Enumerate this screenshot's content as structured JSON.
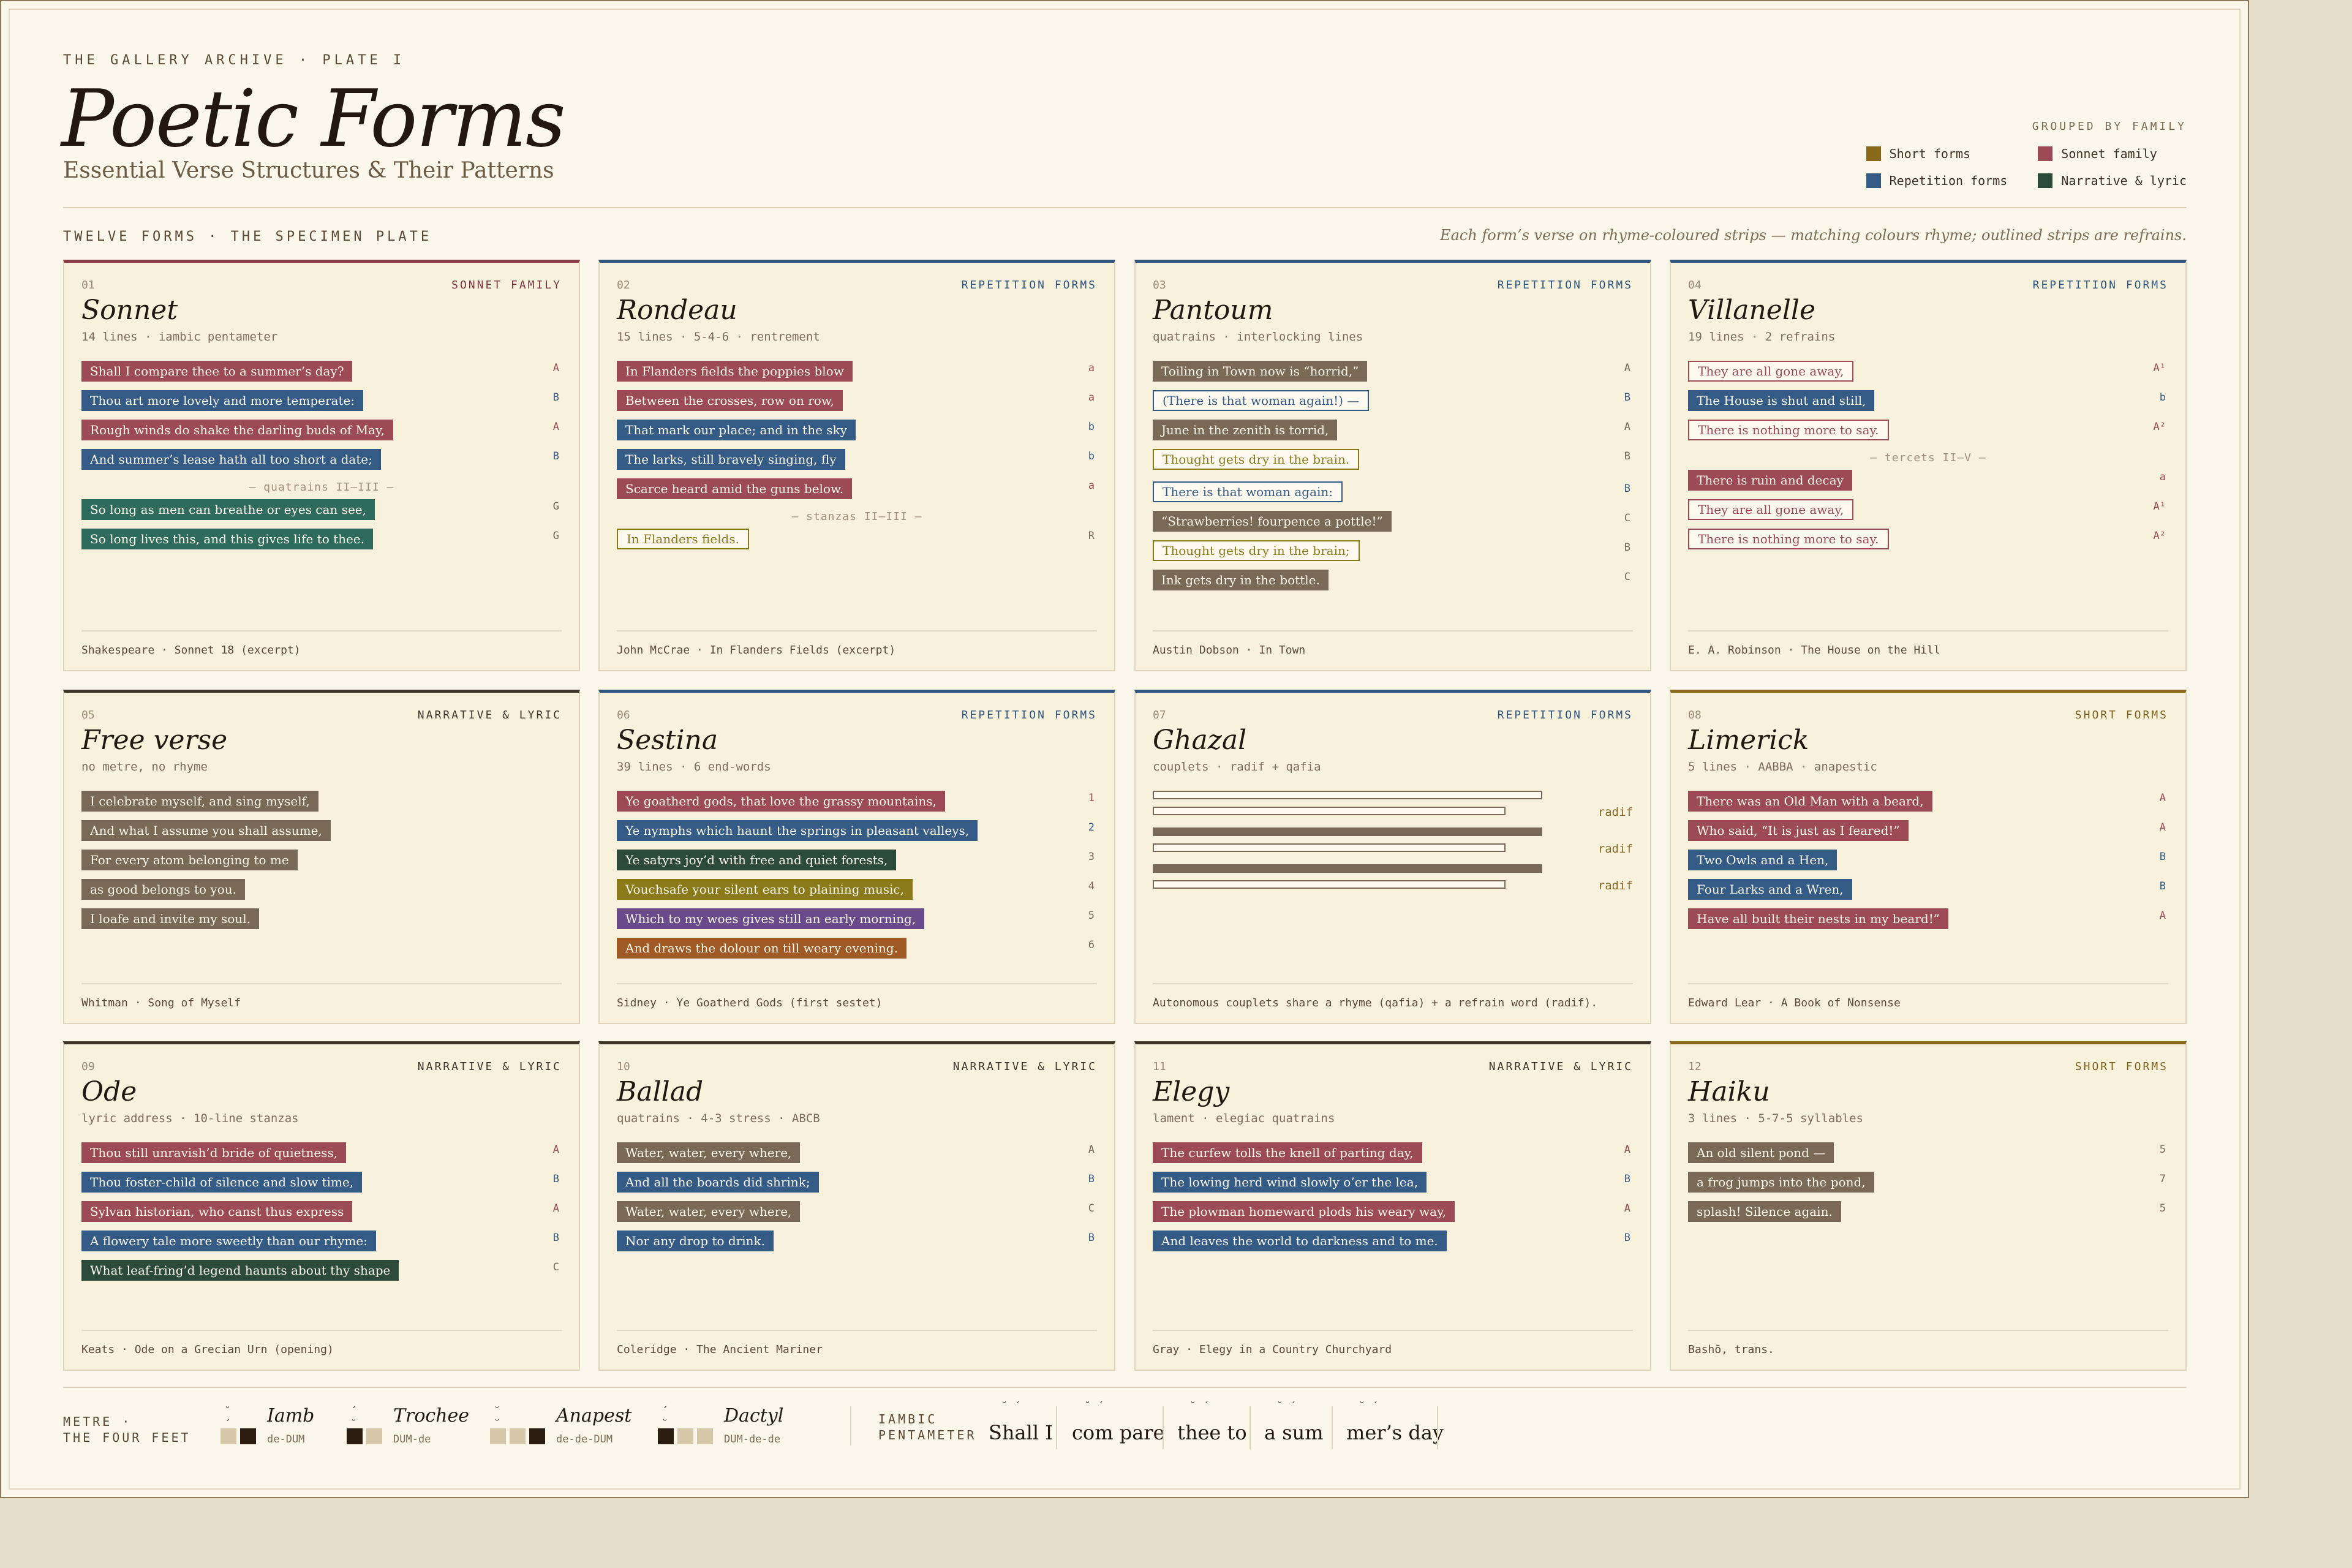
{
  "header": {
    "eyebrow": "THE GALLERY ARCHIVE · PLATE I",
    "title": "Poetic Forms",
    "subtitle": "Essential Verse Structures & Their Patterns"
  },
  "legend": {
    "heading": "GROUPED BY FAMILY",
    "items": [
      {
        "label": "Short forms",
        "color": "#8a6a1a"
      },
      {
        "label": "Sonnet family",
        "color": "#9c4a55"
      },
      {
        "label": "Repetition forms",
        "color": "#335b85"
      },
      {
        "label": "Narrative & lyric",
        "color": "#2c4a3a"
      }
    ]
  },
  "section": {
    "label": "TWELVE FORMS · THE SPECIMEN PLATE",
    "note": "Each form’s verse on rhyme-coloured strips — matching colours rhyme; outlined strips are refrains."
  },
  "cards": [
    {
      "num": "01",
      "family": "SONNET FAMILY",
      "title": "Sonnet",
      "meta": "14 lines · iambic pentameter",
      "lines": [
        {
          "text": "Shall I compare thee to a summer’s day?",
          "rhyme": "A"
        },
        {
          "text": "Thou art more lovely and more temperate:",
          "rhyme": "B"
        },
        {
          "text": "Rough winds do shake the darling buds of May,",
          "rhyme": "A"
        },
        {
          "text": "And summer’s lease hath all too short a date;",
          "rhyme": "B"
        },
        {
          "text": "So long as men can breathe or eyes can see,",
          "rhyme": "G"
        },
        {
          "text": "So long lives this, and this gives life to thee.",
          "rhyme": "G"
        }
      ],
      "divider": "— quatrains II–III —",
      "source": "Shakespeare · Sonnet 18 (excerpt)"
    },
    {
      "num": "02",
      "family": "REPETITION FORMS",
      "title": "Rondeau",
      "meta": "15 lines · 5-4-6 · rentrement",
      "lines": [
        {
          "text": "In Flanders fields the poppies blow",
          "rhyme": "a"
        },
        {
          "text": "Between the crosses, row on row,",
          "rhyme": "a"
        },
        {
          "text": "That mark our place; and in the sky",
          "rhyme": "b"
        },
        {
          "text": "The larks, still bravely singing, fly",
          "rhyme": "b"
        },
        {
          "text": "Scarce heard amid the guns below.",
          "rhyme": "a"
        },
        {
          "text": "In Flanders fields.",
          "rhyme": "R"
        }
      ],
      "divider": "— stanzas II–III —",
      "source": "John McCrae · In Flanders Fields (excerpt)"
    },
    {
      "num": "03",
      "family": "REPETITION FORMS",
      "title": "Pantoum",
      "meta": "quatrains · interlocking lines",
      "lines": [
        {
          "text": "Toiling in Town now is “horrid,”",
          "rhyme": "A"
        },
        {
          "text": "(There is that woman again!) —",
          "rhyme": "B"
        },
        {
          "text": "June in the zenith is torrid,",
          "rhyme": "A"
        },
        {
          "text": "Thought gets dry in the brain.",
          "rhyme": "B"
        },
        {
          "text": "There is that woman again:",
          "rhyme": "B"
        },
        {
          "text": "“Strawberries! fourpence a pottle!”",
          "rhyme": "C"
        },
        {
          "text": "Thought gets dry in the brain;",
          "rhyme": "B"
        },
        {
          "text": "Ink gets dry in the bottle.",
          "rhyme": "C"
        }
      ],
      "source": "Austin Dobson · In Town"
    },
    {
      "num": "04",
      "family": "REPETITION FORMS",
      "title": "Villanelle",
      "meta": "19 lines · 2 refrains",
      "lines": [
        {
          "text": "They are all gone away,",
          "rhyme": "A¹"
        },
        {
          "text": "The House is shut and still,",
          "rhyme": "b"
        },
        {
          "text": "There is nothing more to say.",
          "rhyme": "A²"
        },
        {
          "text": "There is ruin and decay",
          "rhyme": "a"
        },
        {
          "text": "They are all gone away,",
          "rhyme": "A¹"
        },
        {
          "text": "There is nothing more to say.",
          "rhyme": "A²"
        }
      ],
      "divider": "— tercets II–V —",
      "source": "E. A. Robinson · The House on the Hill"
    },
    {
      "num": "05",
      "family": "NARRATIVE & LYRIC",
      "title": "Free verse",
      "meta": "no metre, no rhyme",
      "lines": [
        {
          "text": "I celebrate myself, and sing myself,",
          "rhyme": ""
        },
        {
          "text": "And what I assume you shall assume,",
          "rhyme": ""
        },
        {
          "text": "For every atom belonging to me",
          "rhyme": ""
        },
        {
          "text": "as good belongs to you.",
          "rhyme": ""
        },
        {
          "text": "I loafe and invite my soul.",
          "rhyme": ""
        }
      ],
      "source": "Whitman · Song of Myself"
    },
    {
      "num": "06",
      "family": "REPETITION FORMS",
      "title": "Sestina",
      "meta": "39 lines · 6 end-words",
      "lines": [
        {
          "text": "Ye goatherd gods, that love the grassy mountains,",
          "rhyme": "1"
        },
        {
          "text": "Ye nymphs which haunt the springs in pleasant valleys,",
          "rhyme": "2"
        },
        {
          "text": "Ye satyrs joy’d with free and quiet forests,",
          "rhyme": "3"
        },
        {
          "text": "Vouchsafe your silent ears to plaining music,",
          "rhyme": "4"
        },
        {
          "text": "Which to my woes gives still an early morning,",
          "rhyme": "5"
        },
        {
          "text": "And draws the dolour on till weary evening.",
          "rhyme": "6"
        }
      ],
      "source": "Sidney · Ye Goatherd Gods (first sestet)"
    },
    {
      "num": "07",
      "family": "REPETITION FORMS",
      "title": "Ghazal",
      "meta": "couplets · radif + qafia",
      "radif": [
        "radif",
        "radif",
        "radif"
      ],
      "source": "Autonomous couplets share a rhyme (qafia) + a refrain word (radif)."
    },
    {
      "num": "08",
      "family": "SHORT FORMS",
      "title": "Limerick",
      "meta": "5 lines · AABBA · anapestic",
      "lines": [
        {
          "text": "There was an Old Man with a beard,",
          "rhyme": "A"
        },
        {
          "text": "Who said, “It is just as I feared!”",
          "rhyme": "A"
        },
        {
          "text": "Two Owls and a Hen,",
          "rhyme": "B"
        },
        {
          "text": "Four Larks and a Wren,",
          "rhyme": "B"
        },
        {
          "text": "Have all built their nests in my beard!”",
          "rhyme": "A"
        }
      ],
      "source": "Edward Lear · A Book of Nonsense"
    },
    {
      "num": "09",
      "family": "NARRATIVE & LYRIC",
      "title": "Ode",
      "meta": "lyric address · 10-line stanzas",
      "lines": [
        {
          "text": "Thou still unravish’d bride of quietness,",
          "rhyme": "A"
        },
        {
          "text": "Thou foster-child of silence and slow time,",
          "rhyme": "B"
        },
        {
          "text": "Sylvan historian, who canst thus express",
          "rhyme": "A"
        },
        {
          "text": "A flowery tale more sweetly than our rhyme:",
          "rhyme": "B"
        },
        {
          "text": "What leaf-fring’d legend haunts about thy shape",
          "rhyme": "C"
        }
      ],
      "source": "Keats · Ode on a Grecian Urn (opening)"
    },
    {
      "num": "10",
      "family": "NARRATIVE & LYRIC",
      "title": "Ballad",
      "meta": "quatrains · 4-3 stress · ABCB",
      "lines": [
        {
          "text": "Water, water, every where,",
          "rhyme": "A"
        },
        {
          "text": "And all the boards did shrink;",
          "rhyme": "B"
        },
        {
          "text": "Water, water, every where,",
          "rhyme": "C"
        },
        {
          "text": "Nor any drop to drink.",
          "rhyme": "B"
        }
      ],
      "source": "Coleridge · The Ancient Mariner"
    },
    {
      "num": "11",
      "family": "NARRATIVE & LYRIC",
      "title": "Elegy",
      "meta": "lament · elegiac quatrains",
      "lines": [
        {
          "text": "The curfew tolls the knell of parting day,",
          "rhyme": "A"
        },
        {
          "text": "The lowing herd wind slowly o’er the lea,",
          "rhyme": "B"
        },
        {
          "text": "The plowman homeward plods his weary way,",
          "rhyme": "A"
        },
        {
          "text": "And leaves the world to darkness and to me.",
          "rhyme": "B"
        }
      ],
      "source": "Gray · Elegy in a Country Churchyard"
    },
    {
      "num": "12",
      "family": "SHORT FORMS",
      "title": "Haiku",
      "meta": "3 lines · 5-7-5 syllables",
      "lines": [
        {
          "text": "An old silent pond —",
          "rhyme": "5"
        },
        {
          "text": "a frog jumps into the pond,",
          "rhyme": "7"
        },
        {
          "text": "splash! Silence again.",
          "rhyme": "5"
        }
      ],
      "source": "Bashō, trans."
    }
  ],
  "metre": {
    "label_line1": "METRE ·",
    "label_line2": "THE FOUR FEET",
    "feet": [
      {
        "name": "Iamb",
        "pattern": "de-DUM",
        "stress": "˘ ´"
      },
      {
        "name": "Trochee",
        "pattern": "DUM-de",
        "stress": "´ ˘"
      },
      {
        "name": "Anapest",
        "pattern": "de-de-DUM",
        "stress": "˘ ˘ ´"
      },
      {
        "name": "Dactyl",
        "pattern": "DUM-de-de",
        "stress": "´ ˘ ˘"
      }
    ],
    "pentameter_label_line1": "IAMBIC",
    "pentameter_label_line2": "PENTAMETER",
    "syllables": [
      {
        "text": "Shall I",
        "marks": "˘ ´"
      },
      {
        "text": "com pare",
        "marks": "˘ ´"
      },
      {
        "text": "thee to",
        "marks": "˘ ´"
      },
      {
        "text": "a sum",
        "marks": "˘ ´"
      },
      {
        "text": "mer’s day",
        "marks": "˘ ´"
      }
    ]
  }
}
